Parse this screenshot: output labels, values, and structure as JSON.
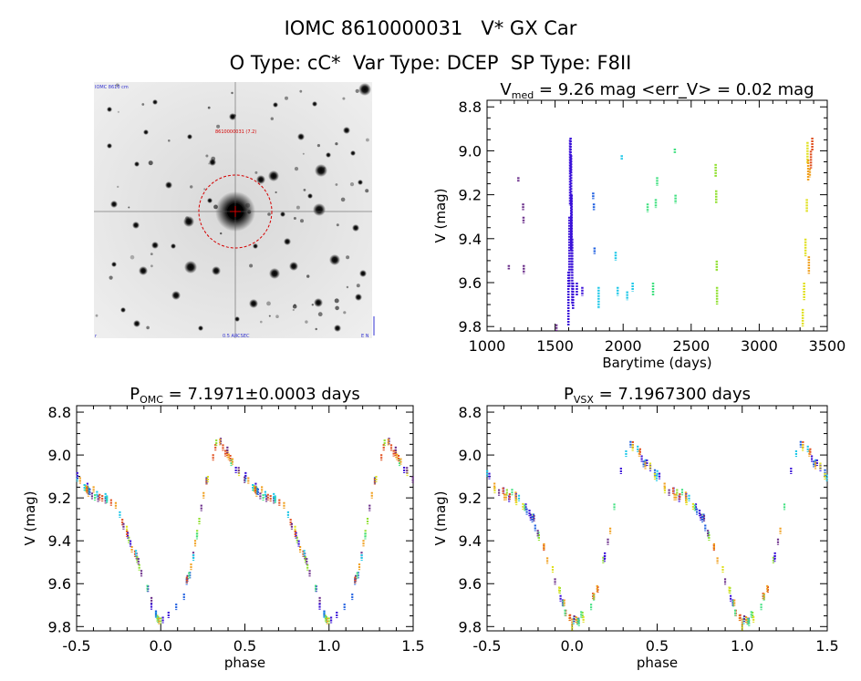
{
  "header": {
    "line1": "IOMC 8610000031   V* GX Car",
    "line2": "O Type: cC*  Var Type: DCEP  SP Type: F8II"
  },
  "image_panel": {
    "top_left_label": "IOMC 8610 cm",
    "marker_label": "8610000031 (7.2)",
    "bottom_center_label": "0.5 ARCSEC",
    "bottom_left_label": "r",
    "bottom_right_label": "E N"
  },
  "chart_data": [
    {
      "type": "scatter",
      "title": "V_med = 9.26 mag <err_V> = 0.02 mag",
      "title_parts": {
        "main": "V",
        "sub": "med",
        "rest": " = 9.26 mag <err_V> = 0.02 mag"
      },
      "xlabel": "Barytime (days)",
      "ylabel": "V (mag)",
      "xlim": [
        1000,
        3500
      ],
      "ylim": [
        9.82,
        8.77
      ],
      "y_inverted": true,
      "xticks": [
        1000,
        1500,
        2000,
        2500,
        3000,
        3500
      ],
      "yticks": [
        8.8,
        9.0,
        9.2,
        9.4,
        9.6,
        9.8
      ],
      "series": [
        {
          "color": "#6b2f8a",
          "segments": [
            {
              "x": 1160,
              "y": [
                9.52,
                9.54
              ]
            },
            {
              "x": 1230,
              "y": [
                9.12,
                9.14
              ]
            },
            {
              "x": 1265,
              "y": [
                9.24,
                9.27
              ]
            },
            {
              "x": 1268,
              "y": [
                9.3,
                9.33
              ]
            },
            {
              "x": 1270,
              "y": [
                9.52,
                9.56
              ]
            },
            {
              "x": 1510,
              "y": [
                9.79,
                9.82
              ]
            }
          ]
        },
        {
          "color": "#3a10d8",
          "segments": [
            {
              "x": 1598,
              "y": [
                9.55,
                9.8
              ]
            },
            {
              "x": 1605,
              "y": [
                9.3,
                9.62
              ]
            },
            {
              "x": 1610,
              "y": [
                8.95,
                9.25
              ]
            },
            {
              "x": 1614,
              "y": [
                8.94,
                9.1
              ]
            },
            {
              "x": 1618,
              "y": [
                9.02,
                9.45
              ]
            },
            {
              "x": 1622,
              "y": [
                9.2,
                9.55
              ]
            },
            {
              "x": 1626,
              "y": [
                9.4,
                9.7
              ]
            },
            {
              "x": 1632,
              "y": [
                9.6,
                9.72
              ]
            },
            {
              "x": 1660,
              "y": [
                9.6,
                9.66
              ]
            },
            {
              "x": 1700,
              "y": [
                9.62,
                9.66
              ]
            }
          ]
        },
        {
          "color": "#2060e0",
          "segments": [
            {
              "x": 1780,
              "y": [
                9.19,
                9.22
              ]
            },
            {
              "x": 1785,
              "y": [
                9.24,
                9.27
              ]
            },
            {
              "x": 1790,
              "y": [
                9.44,
                9.47
              ]
            }
          ]
        },
        {
          "color": "#20c8e8",
          "segments": [
            {
              "x": 1820,
              "y": [
                9.62,
                9.72
              ]
            },
            {
              "x": 1945,
              "y": [
                9.46,
                9.5
              ]
            },
            {
              "x": 1960,
              "y": [
                9.62,
                9.66
              ]
            },
            {
              "x": 1990,
              "y": [
                9.02,
                9.04
              ]
            },
            {
              "x": 2030,
              "y": [
                9.64,
                9.68
              ]
            },
            {
              "x": 2070,
              "y": [
                9.6,
                9.64
              ]
            }
          ]
        },
        {
          "color": "#40e080",
          "segments": [
            {
              "x": 2180,
              "y": [
                9.24,
                9.28
              ]
            },
            {
              "x": 2220,
              "y": [
                9.6,
                9.66
              ]
            },
            {
              "x": 2240,
              "y": [
                9.22,
                9.26
              ]
            },
            {
              "x": 2250,
              "y": [
                9.12,
                9.16
              ]
            },
            {
              "x": 2380,
              "y": [
                8.99,
                9.01
              ]
            },
            {
              "x": 2385,
              "y": [
                9.2,
                9.24
              ]
            }
          ]
        },
        {
          "color": "#90e030",
          "segments": [
            {
              "x": 2680,
              "y": [
                9.06,
                9.12
              ]
            },
            {
              "x": 2684,
              "y": [
                9.18,
                9.24
              ]
            },
            {
              "x": 2688,
              "y": [
                9.5,
                9.55
              ]
            },
            {
              "x": 2690,
              "y": [
                9.62,
                9.7
              ]
            }
          ]
        },
        {
          "color": "#e0e020",
          "segments": [
            {
              "x": 3320,
              "y": [
                9.72,
                9.8
              ]
            },
            {
              "x": 3330,
              "y": [
                9.6,
                9.68
              ]
            },
            {
              "x": 3340,
              "y": [
                9.4,
                9.48
              ]
            },
            {
              "x": 3350,
              "y": [
                9.22,
                9.28
              ]
            },
            {
              "x": 3355,
              "y": [
                8.96,
                9.06
              ]
            }
          ]
        },
        {
          "color": "#f0a020",
          "segments": [
            {
              "x": 3360,
              "y": [
                9.04,
                9.14
              ]
            },
            {
              "x": 3365,
              "y": [
                9.48,
                9.56
              ]
            },
            {
              "x": 3372,
              "y": [
                9.08,
                9.12
              ]
            }
          ]
        },
        {
          "color": "#e05020",
          "segments": [
            {
              "x": 3380,
              "y": [
                9.0,
                9.08
              ]
            },
            {
              "x": 3390,
              "y": [
                8.94,
                9.0
              ]
            }
          ]
        }
      ]
    },
    {
      "type": "scatter",
      "title": "P_OMC = 7.1971±0.0003 days",
      "title_parts": {
        "main": "P",
        "sub": "OMC",
        "rest": " = 7.1971±0.0003 days"
      },
      "xlabel": "phase",
      "ylabel": "V (mag)",
      "xlim": [
        -0.5,
        1.5
      ],
      "ylim": [
        9.82,
        8.77
      ],
      "y_inverted": true,
      "xticks": [
        -0.5,
        0.0,
        0.5,
        1.0,
        1.5
      ],
      "xtick_labels": [
        "-0.5",
        "0.0",
        "0.5",
        "1.0",
        "1.5"
      ],
      "yticks": [
        8.8,
        9.0,
        9.2,
        9.4,
        9.6,
        9.8
      ],
      "curve": {
        "phase": [
          0.0,
          0.05,
          0.1,
          0.15,
          0.2,
          0.25,
          0.3,
          0.33,
          0.36,
          0.4,
          0.45,
          0.5,
          0.55,
          0.6,
          0.65,
          0.7,
          0.75,
          0.8,
          0.85,
          0.9,
          0.95,
          1.0
        ],
        "mag": [
          9.79,
          9.76,
          9.72,
          9.62,
          9.45,
          9.22,
          9.02,
          8.96,
          8.95,
          9.0,
          9.06,
          9.1,
          9.15,
          9.18,
          9.19,
          9.21,
          9.26,
          9.36,
          9.47,
          9.58,
          9.7,
          9.79
        ]
      }
    },
    {
      "type": "scatter",
      "title": "P_VSX = 7.1967300 days",
      "title_parts": {
        "main": "P",
        "sub": "VSX",
        "rest": " = 7.1967300 days"
      },
      "xlabel": "phase",
      "ylabel": "V (mag)",
      "xlim": [
        -0.5,
        1.5
      ],
      "ylim": [
        9.82,
        8.77
      ],
      "y_inverted": true,
      "xticks": [
        -0.5,
        0.0,
        0.5,
        1.0,
        1.5
      ],
      "xtick_labels": [
        "-0.5",
        "0.0",
        "0.5",
        "1.0",
        "1.5"
      ],
      "yticks": [
        8.8,
        9.0,
        9.2,
        9.4,
        9.6,
        9.8
      ],
      "curve": {
        "phase": [
          0.0,
          0.05,
          0.1,
          0.15,
          0.2,
          0.25,
          0.3,
          0.33,
          0.36,
          0.4,
          0.45,
          0.5,
          0.55,
          0.6,
          0.65,
          0.7,
          0.75,
          0.8,
          0.85,
          0.9,
          0.95,
          1.0
        ],
        "mag": [
          9.79,
          9.76,
          9.72,
          9.62,
          9.45,
          9.22,
          9.02,
          8.96,
          8.95,
          9.0,
          9.06,
          9.1,
          9.15,
          9.18,
          9.19,
          9.21,
          9.26,
          9.36,
          9.47,
          9.58,
          9.7,
          9.79
        ]
      }
    }
  ],
  "colors": {
    "point_palette": [
      "#6b2f8a",
      "#3a10d8",
      "#2060e0",
      "#20c8e8",
      "#40e080",
      "#90e030",
      "#e0e020",
      "#f0a020",
      "#e05020"
    ],
    "marker_circle": "#d40000"
  }
}
